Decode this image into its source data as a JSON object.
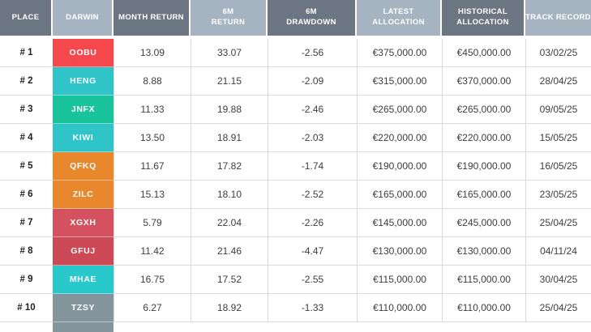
{
  "table": {
    "columns": [
      {
        "label": "PLACE"
      },
      {
        "label": "DARWIN"
      },
      {
        "label": "MONTH RETURN"
      },
      {
        "label": "6M\nRETURN"
      },
      {
        "label": "6M\nDRAWDOWN"
      },
      {
        "label": "LATEST\nALLOCATION"
      },
      {
        "label": "HISTORICAL\nALLOCATION"
      },
      {
        "label": "TRACK RECORD"
      }
    ],
    "rows": [
      {
        "place": "# 1",
        "darwin": "OOBU",
        "darwin_color": "#F4484D",
        "month_return": "13.09",
        "six_m_return": "33.07",
        "six_m_drawdown": "-2.56",
        "latest_allocation": "€375,000.00",
        "historical_allocation": "€450,000.00",
        "track_record": "03/02/25"
      },
      {
        "place": "# 2",
        "darwin": "HENG",
        "darwin_color": "#2FC5C8",
        "month_return": "8.88",
        "six_m_return": "21.15",
        "six_m_drawdown": "-2.09",
        "latest_allocation": "€315,000.00",
        "historical_allocation": "€370,000.00",
        "track_record": "28/04/25"
      },
      {
        "place": "# 3",
        "darwin": "JNFX",
        "darwin_color": "#19C39B",
        "month_return": "11.33",
        "six_m_return": "19.88",
        "six_m_drawdown": "-2.46",
        "latest_allocation": "€265,000.00",
        "historical_allocation": "€265,000.00",
        "track_record": "09/05/25"
      },
      {
        "place": "# 4",
        "darwin": "KIWI",
        "darwin_color": "#2FC5C8",
        "month_return": "13.50",
        "six_m_return": "18.91",
        "six_m_drawdown": "-2.03",
        "latest_allocation": "€220,000.00",
        "historical_allocation": "€220,000.00",
        "track_record": "15/05/25"
      },
      {
        "place": "# 5",
        "darwin": "QFKQ",
        "darwin_color": "#E8872B",
        "month_return": "11.67",
        "six_m_return": "17.82",
        "six_m_drawdown": "-1.74",
        "latest_allocation": "€190,000.00",
        "historical_allocation": "€190,000.00",
        "track_record": "16/05/25"
      },
      {
        "place": "# 6",
        "darwin": "ZILC",
        "darwin_color": "#E8872B",
        "month_return": "15.13",
        "six_m_return": "18.10",
        "six_m_drawdown": "-2.52",
        "latest_allocation": "€165,000.00",
        "historical_allocation": "€165,000.00",
        "track_record": "23/05/25"
      },
      {
        "place": "# 7",
        "darwin": "XGXH",
        "darwin_color": "#D4525F",
        "month_return": "5.79",
        "six_m_return": "22.04",
        "six_m_drawdown": "-2.26",
        "latest_allocation": "€145,000.00",
        "historical_allocation": "€245,000.00",
        "track_record": "25/04/25"
      },
      {
        "place": "# 8",
        "darwin": "GFUJ",
        "darwin_color": "#CB4A55",
        "month_return": "11.42",
        "six_m_return": "21.46",
        "six_m_drawdown": "-4.47",
        "latest_allocation": "€130,000.00",
        "historical_allocation": "€130,000.00",
        "track_record": "04/11/24"
      },
      {
        "place": "# 9",
        "darwin": "MHAE",
        "darwin_color": "#29C9CB",
        "month_return": "16.75",
        "six_m_return": "17.52",
        "six_m_drawdown": "-2.55",
        "latest_allocation": "€115,000.00",
        "historical_allocation": "€115,000.00",
        "track_record": "30/04/25"
      },
      {
        "place": "# 10",
        "darwin": "TZSY",
        "darwin_color": "#84959D",
        "month_return": "6.27",
        "six_m_return": "18.92",
        "six_m_drawdown": "-1.33",
        "latest_allocation": "€110,000.00",
        "historical_allocation": "€110,000.00",
        "track_record": "25/04/25"
      }
    ],
    "partial_row": {
      "darwin_color": "#84959D"
    },
    "colors": {
      "header_dark": "#6C7682",
      "header_light": "#A6B4C2",
      "row_border": "#DCDCDC",
      "body_text": "#3D3D3D"
    }
  }
}
